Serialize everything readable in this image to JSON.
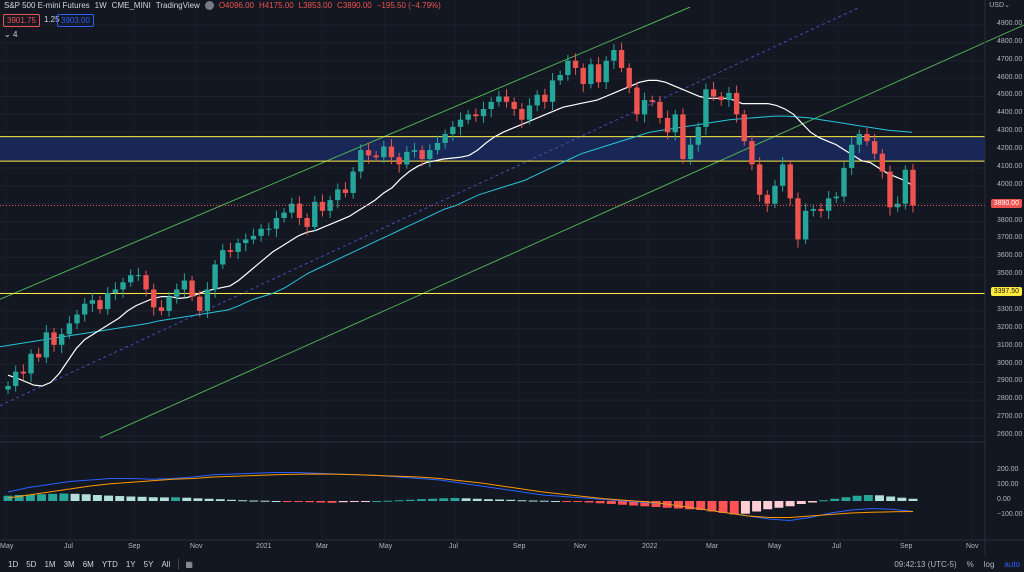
{
  "legend": {
    "symbol": "S&P 500 E-mini Futures",
    "interval": "1W",
    "exchange": "CME_MINI",
    "source": "TradingView",
    "open": "O4096.00",
    "high": "H4175.00",
    "low": "L3853.00",
    "close": "C3890.00",
    "change": "−195.50 (−4.79%)"
  },
  "quote": {
    "bid": "3901.75",
    "spread": "1.25",
    "ask": "3903.00"
  },
  "indicators_toggle": "4",
  "price_axis": {
    "currency": "USD",
    "ticks": [
      "4900.00",
      "4800.00",
      "4700.00",
      "4600.00",
      "4500.00",
      "4400.00",
      "4300.00",
      "4200.00",
      "4100.00",
      "4000.00",
      "3900.00",
      "3800.00",
      "3700.00",
      "3600.00",
      "3500.00",
      "3400.00",
      "3300.00",
      "3200.00",
      "3100.00",
      "3000.00",
      "2900.00",
      "2800.00",
      "2700.00",
      "2600.00"
    ],
    "last_price_label": "3890.00",
    "level_label": "3397.50"
  },
  "macd_axis": {
    "ticks": [
      "200.00",
      "100.00",
      "0.00",
      "−100.00"
    ]
  },
  "time_axis": {
    "labels": [
      "May",
      "Jul",
      "Sep",
      "Nov",
      "2021",
      "Mar",
      "May",
      "Jul",
      "Sep",
      "Nov",
      "2022",
      "Mar",
      "May",
      "Jul",
      "Sep",
      "Nov"
    ]
  },
  "bottom": {
    "timeframes": [
      "1D",
      "5D",
      "1M",
      "3M",
      "6M",
      "YTD",
      "1Y",
      "5Y",
      "All"
    ],
    "time": "09:42:13 (UTC-5)",
    "percent": "%",
    "log": "log",
    "auto": "auto"
  },
  "colors": {
    "up": "#26a69a",
    "down": "#ef5350",
    "sma_fast": "#ffffff",
    "sma_slow": "#26c6da",
    "channel": "#4caf50",
    "level": "#ffeb3b",
    "zone": "#1a2a5e"
  },
  "chart_data": {
    "type": "candlestick",
    "interval": "weekly",
    "ylim": [
      2560,
      5010
    ],
    "last_close": 3890,
    "horizontal_levels": [
      3397.5,
      4138,
      4275
    ],
    "support_resistance_zone": [
      4138,
      4275
    ],
    "closes": [
      2880,
      2960,
      2950,
      3060,
      3040,
      3180,
      3110,
      3170,
      3230,
      3280,
      3340,
      3360,
      3310,
      3400,
      3420,
      3460,
      3500,
      3500,
      3420,
      3320,
      3300,
      3380,
      3420,
      3470,
      3380,
      3300,
      3420,
      3560,
      3640,
      3630,
      3680,
      3700,
      3720,
      3760,
      3760,
      3820,
      3850,
      3900,
      3820,
      3770,
      3910,
      3860,
      3920,
      3980,
      3960,
      4080,
      4200,
      4170,
      4160,
      4220,
      4160,
      4120,
      4190,
      4200,
      4150,
      4200,
      4240,
      4290,
      4330,
      4370,
      4400,
      4390,
      4430,
      4470,
      4500,
      4470,
      4430,
      4370,
      4450,
      4510,
      4470,
      4590,
      4620,
      4700,
      4660,
      4570,
      4680,
      4580,
      4700,
      4760,
      4660,
      4550,
      4400,
      4480,
      4470,
      4380,
      4300,
      4400,
      4150,
      4230,
      4330,
      4540,
      4500,
      4480,
      4520,
      4400,
      4250,
      4120,
      3950,
      3900,
      4000,
      4120,
      3930,
      3700,
      3860,
      3870,
      3860,
      3930,
      3940,
      4100,
      4230,
      4290,
      4250,
      4180,
      4080,
      3880,
      3900,
      4090,
      3890
    ],
    "volatility_band": 25,
    "sma_fast": [
      2940,
      2925,
      2905,
      2885,
      2880,
      2900,
      2950,
      3020,
      3090,
      3140,
      3170,
      3200,
      3230,
      3260,
      3300,
      3330,
      3350,
      3370,
      3380,
      3380,
      3370,
      3375,
      3390,
      3410,
      3420,
      3430,
      3440,
      3470,
      3510,
      3550,
      3590,
      3630,
      3660,
      3690,
      3720,
      3740,
      3750,
      3770,
      3790,
      3810,
      3830,
      3860,
      3890,
      3920,
      3960,
      3990,
      4040,
      4080,
      4110,
      4130,
      4140,
      4150,
      4155,
      4160,
      4170,
      4200,
      4240,
      4275,
      4300,
      4320,
      4340,
      4360,
      4380,
      4400,
      4420,
      4440,
      4450,
      4460,
      4470,
      4480,
      4500,
      4520,
      4540,
      4560,
      4580,
      4590,
      4590,
      4580,
      4560,
      4540,
      4520,
      4500,
      4490,
      4490,
      4490,
      4480,
      4460,
      4460,
      4460,
      4460,
      4450,
      4430,
      4400,
      4350,
      4300,
      4270,
      4250,
      4230,
      4200,
      4170,
      4140,
      4130,
      4100,
      4070,
      4050,
      4030,
      4000
    ],
    "sma_slow": [
      3100,
      3110,
      3120,
      3130,
      3140,
      3150,
      3160,
      3170,
      3180,
      3190,
      3200,
      3210,
      3220,
      3230,
      3245,
      3255,
      3265,
      3275,
      3285,
      3295,
      3305,
      3330,
      3360,
      3380,
      3400,
      3430,
      3470,
      3510,
      3540,
      3570,
      3600,
      3630,
      3660,
      3690,
      3720,
      3750,
      3780,
      3810,
      3840,
      3870,
      3890,
      3920,
      3950,
      3970,
      3990,
      4010,
      4030,
      4060,
      4090,
      4120,
      4150,
      4180,
      4200,
      4220,
      4240,
      4260,
      4280,
      4300,
      4310,
      4320,
      4330,
      4340,
      4350,
      4360,
      4370,
      4375,
      4380,
      4385,
      4390,
      4390,
      4385,
      4380,
      4370,
      4360,
      4350,
      4340,
      4330,
      4320,
      4310,
      4305,
      4300
    ],
    "channel_upper": [
      [
        0,
        3365
      ],
      [
        690,
        5000
      ]
    ],
    "channel_lower": [
      [
        100,
        2590
      ],
      [
        1024,
        4900
      ]
    ],
    "channel_mid": [
      [
        0,
        2770
      ],
      [
        860,
        5000
      ]
    ],
    "macd_hist": [
      35,
      40,
      42,
      45,
      48,
      50,
      48,
      45,
      40,
      36,
      33,
      30,
      28,
      25,
      24,
      25,
      22,
      18,
      15,
      12,
      8,
      5,
      3,
      2,
      0,
      -2,
      -5,
      -8,
      -10,
      -12,
      -8,
      -5,
      -2,
      0,
      2,
      5,
      8,
      12,
      15,
      18,
      20,
      18,
      15,
      12,
      10,
      8,
      5,
      3,
      2,
      0,
      -2,
      -5,
      -10,
      -15,
      -20,
      -25,
      -30,
      -35,
      -40,
      -45,
      -50,
      -55,
      -60,
      -70,
      -80,
      -90,
      -85,
      -70,
      -55,
      -45,
      -35,
      -20,
      -10,
      5,
      15,
      25,
      35,
      40,
      38,
      30,
      22,
      15
    ],
    "macd_line": [
      60,
      90,
      110,
      130,
      140,
      150,
      150,
      145,
      150,
      160,
      175,
      180,
      185,
      190,
      190,
      185,
      180,
      175,
      170,
      160,
      150,
      140,
      120,
      100,
      80,
      60,
      40,
      30,
      20,
      10,
      0,
      -10,
      -20,
      -40,
      -60,
      -80,
      -100,
      -120,
      -130,
      -110,
      -80,
      -60,
      -50,
      -55,
      -70
    ],
    "signal_line": [
      20,
      40,
      60,
      80,
      100,
      115,
      125,
      135,
      145,
      150,
      160,
      165,
      170,
      175,
      178,
      180,
      178,
      175,
      170,
      165,
      160,
      150,
      135,
      120,
      100,
      80,
      60,
      45,
      30,
      15,
      5,
      -5,
      -20,
      -40,
      -60,
      -80,
      -100,
      -110,
      -110,
      -100,
      -90,
      -80,
      -75,
      -72,
      -70
    ]
  }
}
